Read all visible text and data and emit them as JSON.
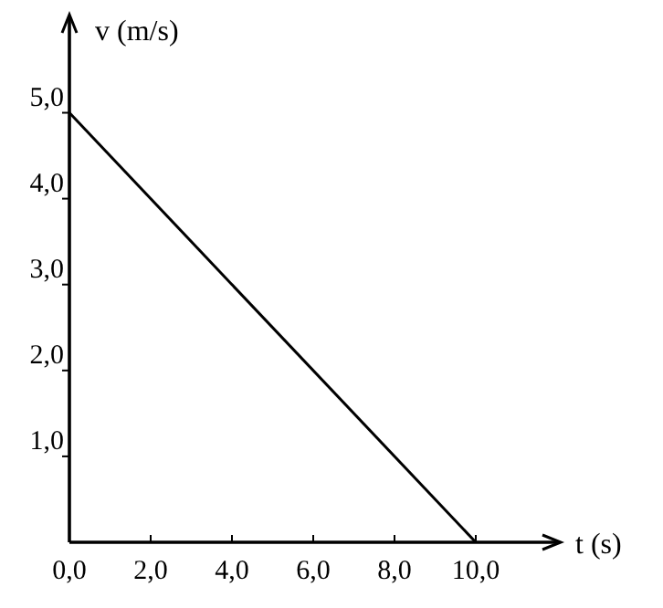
{
  "chart_data": {
    "type": "line",
    "xlabel": "t (s)",
    "ylabel": "v (m/s)",
    "x": [
      0,
      10
    ],
    "series": [
      {
        "color": "#000000",
        "values": [
          5,
          0
        ]
      }
    ],
    "xlim": [
      0,
      12
    ],
    "ylim": [
      0,
      6.1
    ],
    "xticks": [
      {
        "value": 0,
        "label": "0,0"
      },
      {
        "value": 2,
        "label": "2,0"
      },
      {
        "value": 4,
        "label": "4,0"
      },
      {
        "value": 6,
        "label": "6,0"
      },
      {
        "value": 8,
        "label": "8,0"
      },
      {
        "value": 10,
        "label": "10,0"
      }
    ],
    "yticks": [
      {
        "value": 1,
        "label": "1,0"
      },
      {
        "value": 2,
        "label": "2,0"
      },
      {
        "value": 3,
        "label": "3,0"
      },
      {
        "value": 4,
        "label": "4,0"
      },
      {
        "value": 5,
        "label": "5,0"
      }
    ],
    "grid": false,
    "marker": "none",
    "line_style": "solid"
  }
}
